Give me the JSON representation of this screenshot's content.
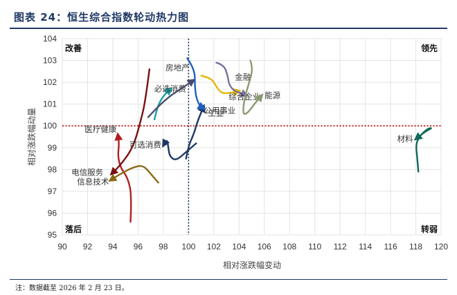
{
  "title": "图表 24：恒生综合指数轮动热力图",
  "note": "注：数据截至 2026 年 2 月 23 日。",
  "chart_data": {
    "type": "line",
    "xlabel": "相对涨跌幅变动",
    "ylabel": "相对涨跌幅动量",
    "xlim": [
      90,
      120
    ],
    "ylim": [
      95,
      104
    ],
    "x_ticks": [
      "90",
      "92",
      "94",
      "96",
      "98",
      "100",
      "102",
      "104",
      "106",
      "108",
      "110",
      "112",
      "114",
      "116",
      "118",
      "120"
    ],
    "y_ticks": [
      "95",
      "96",
      "97",
      "98",
      "99",
      "100",
      "101",
      "102",
      "103",
      "104"
    ],
    "reference_lines": {
      "x": 100,
      "y": 100
    },
    "quadrants": {
      "top_left": "改善",
      "top_right": "领先",
      "bottom_left": "落后",
      "bottom_right": "转弱"
    },
    "series": [
      {
        "name": "医疗健康",
        "color": "#b11f1f",
        "points": [
          [
            95.4,
            95.6
          ],
          [
            95.5,
            96.8
          ],
          [
            95.2,
            97.6
          ],
          [
            94.6,
            98.1
          ],
          [
            94.4,
            98.6
          ],
          [
            94.5,
            99.2
          ],
          [
            94.4,
            99.6
          ]
        ]
      },
      {
        "name": "电信服务",
        "color": "#7a1010",
        "points": [
          [
            96.9,
            102.6
          ],
          [
            96.6,
            101.2
          ],
          [
            96.2,
            100.2
          ],
          [
            95.6,
            99.0
          ],
          [
            94.6,
            98.2
          ],
          [
            93.9,
            97.8
          ]
        ]
      },
      {
        "name": "信息技术",
        "color": "#8b6914",
        "points": [
          [
            97.6,
            97.4
          ],
          [
            97.0,
            97.8
          ],
          [
            96.4,
            98.2
          ],
          [
            95.6,
            98.1
          ],
          [
            94.6,
            97.8
          ],
          [
            93.8,
            97.5
          ]
        ]
      },
      {
        "name": "可选消费",
        "color": "#1f3864",
        "points": [
          [
            100.6,
            99.2
          ],
          [
            99.8,
            98.8
          ],
          [
            99.0,
            98.4
          ],
          [
            98.5,
            98.6
          ],
          [
            98.4,
            99.0
          ],
          [
            98.3,
            99.4
          ],
          [
            98.0,
            99.1
          ]
        ]
      },
      {
        "name": "必选消费",
        "color": "#1aa0a8",
        "points": [
          [
            97.3,
            100.3
          ],
          [
            97.5,
            100.8
          ],
          [
            97.8,
            101.2
          ],
          [
            98.2,
            101.5
          ],
          [
            98.6,
            101.7
          ]
        ]
      },
      {
        "name": "房地产",
        "color": "#4a4a6a",
        "points": [
          [
            96.8,
            100.4
          ],
          [
            97.6,
            100.9
          ],
          [
            98.6,
            101.4
          ],
          [
            99.4,
            101.7
          ],
          [
            100.4,
            102.1
          ]
        ]
      },
      {
        "name": "工业",
        "color": "#1f3864",
        "points": [
          [
            99.8,
            98.5
          ],
          [
            100.0,
            99.1
          ],
          [
            100.4,
            99.6
          ],
          [
            100.7,
            100.2
          ],
          [
            101.2,
            100.9
          ]
        ]
      },
      {
        "name": "公用事业",
        "color": "#1f5fbf",
        "points": [
          [
            99.9,
            103.1
          ],
          [
            100.5,
            102.6
          ],
          [
            100.5,
            101.8
          ],
          [
            100.6,
            101.3
          ],
          [
            100.9,
            100.9
          ],
          [
            101.2,
            100.8
          ]
        ]
      },
      {
        "name": "金融",
        "color": "#e6b800",
        "points": [
          [
            101.0,
            102.3
          ],
          [
            101.8,
            102.2
          ],
          [
            102.2,
            101.8
          ],
          [
            102.6,
            101.5
          ],
          [
            103.2,
            101.5
          ],
          [
            104.0,
            101.6
          ]
        ]
      },
      {
        "name": "综合企业",
        "color": "#7a6fa0",
        "points": [
          [
            102.2,
            102.9
          ],
          [
            102.8,
            102.8
          ],
          [
            103.1,
            102.3
          ],
          [
            103.2,
            101.9
          ],
          [
            103.6,
            101.6
          ],
          [
            104.2,
            101.5
          ],
          [
            104.6,
            101.4
          ]
        ]
      },
      {
        "name": "能源",
        "color": "#8a9a70",
        "points": [
          [
            104.9,
            103.0
          ],
          [
            105.1,
            102.6
          ],
          [
            104.8,
            102.0
          ],
          [
            104.4,
            101.2
          ],
          [
            104.3,
            100.5
          ],
          [
            104.7,
            100.6
          ],
          [
            105.2,
            101.0
          ],
          [
            105.8,
            101.4
          ]
        ]
      },
      {
        "name": "材料",
        "color": "#106a5a",
        "points": [
          [
            118.2,
            97.9
          ],
          [
            118.1,
            98.6
          ],
          [
            118.0,
            99.2
          ],
          [
            118.4,
            99.6
          ],
          [
            119.0,
            99.9
          ],
          [
            119.3,
            99.9
          ],
          [
            118.9,
            99.8
          ],
          [
            118.0,
            99.4
          ]
        ]
      }
    ]
  }
}
